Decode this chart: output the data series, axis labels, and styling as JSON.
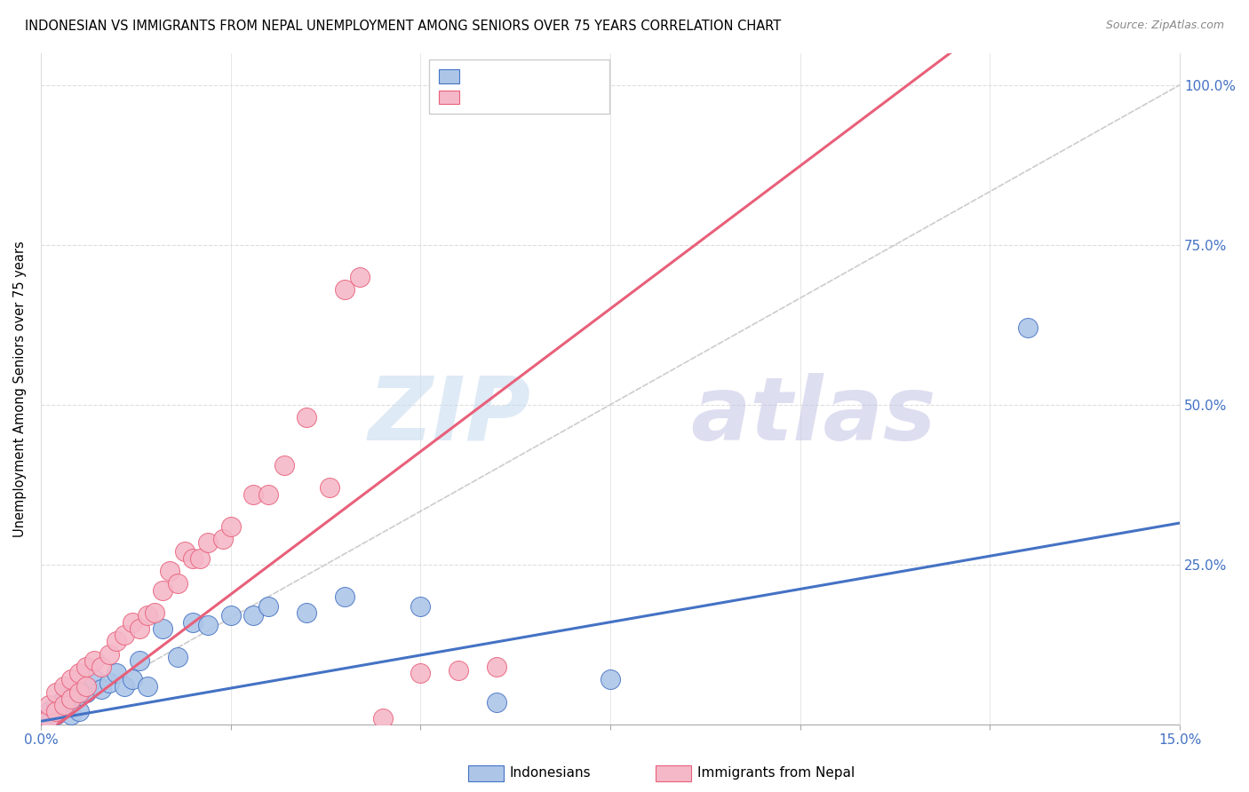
{
  "title": "INDONESIAN VS IMMIGRANTS FROM NEPAL UNEMPLOYMENT AMONG SENIORS OVER 75 YEARS CORRELATION CHART",
  "source": "Source: ZipAtlas.com",
  "ylabel": "Unemployment Among Seniors over 75 years",
  "xlim": [
    0.0,
    0.15
  ],
  "ylim": [
    0.0,
    1.05
  ],
  "ytick_positions": [
    0.0,
    0.25,
    0.5,
    0.75,
    1.0
  ],
  "ytick_labels_right": [
    "",
    "25.0%",
    "50.0%",
    "75.0%",
    "100.0%"
  ],
  "xtick_positions": [
    0.0,
    0.025,
    0.05,
    0.075,
    0.1,
    0.125,
    0.15
  ],
  "xtick_labels": [
    "0.0%",
    "",
    "",
    "",
    "",
    "",
    "15.0%"
  ],
  "color_blue": "#adc6e8",
  "color_pink": "#f5b8c8",
  "line_blue": "#4472c4",
  "line_pink": "#e8607a",
  "diag_color": "#cccccc",
  "grid_color": "#dddddd",
  "blue_line_x0": 0.0,
  "blue_line_y0": 0.005,
  "blue_line_x1": 0.15,
  "blue_line_y1": 0.315,
  "pink_line_x0": 0.0,
  "pink_line_y0": -0.02,
  "pink_line_x1": 0.075,
  "pink_line_y1": 0.65,
  "indonesian_x": [
    0.001,
    0.001,
    0.002,
    0.002,
    0.003,
    0.003,
    0.004,
    0.004,
    0.005,
    0.005,
    0.006,
    0.007,
    0.008,
    0.009,
    0.01,
    0.011,
    0.012,
    0.013,
    0.014,
    0.016,
    0.018,
    0.02,
    0.022,
    0.025,
    0.028,
    0.03,
    0.035,
    0.04,
    0.05,
    0.06,
    0.075,
    0.13
  ],
  "indonesian_y": [
    0.01,
    0.02,
    0.015,
    0.03,
    0.025,
    0.04,
    0.015,
    0.035,
    0.02,
    0.045,
    0.05,
    0.07,
    0.055,
    0.065,
    0.08,
    0.06,
    0.07,
    0.1,
    0.06,
    0.15,
    0.105,
    0.16,
    0.155,
    0.17,
    0.17,
    0.185,
    0.175,
    0.2,
    0.185,
    0.035,
    0.07,
    0.62
  ],
  "nepal_x": [
    0.001,
    0.001,
    0.002,
    0.002,
    0.003,
    0.003,
    0.004,
    0.004,
    0.005,
    0.005,
    0.006,
    0.006,
    0.007,
    0.008,
    0.009,
    0.01,
    0.011,
    0.012,
    0.013,
    0.014,
    0.015,
    0.016,
    0.017,
    0.018,
    0.019,
    0.02,
    0.021,
    0.022,
    0.024,
    0.025,
    0.028,
    0.03,
    0.032,
    0.035,
    0.038,
    0.04,
    0.042,
    0.045,
    0.05,
    0.055,
    0.06
  ],
  "nepal_y": [
    0.01,
    0.03,
    0.02,
    0.05,
    0.03,
    0.06,
    0.04,
    0.07,
    0.05,
    0.08,
    0.06,
    0.09,
    0.1,
    0.09,
    0.11,
    0.13,
    0.14,
    0.16,
    0.15,
    0.17,
    0.175,
    0.21,
    0.24,
    0.22,
    0.27,
    0.26,
    0.26,
    0.285,
    0.29,
    0.31,
    0.36,
    0.36,
    0.405,
    0.48,
    0.37,
    0.68,
    0.7,
    0.01,
    0.08,
    0.085,
    0.09
  ]
}
